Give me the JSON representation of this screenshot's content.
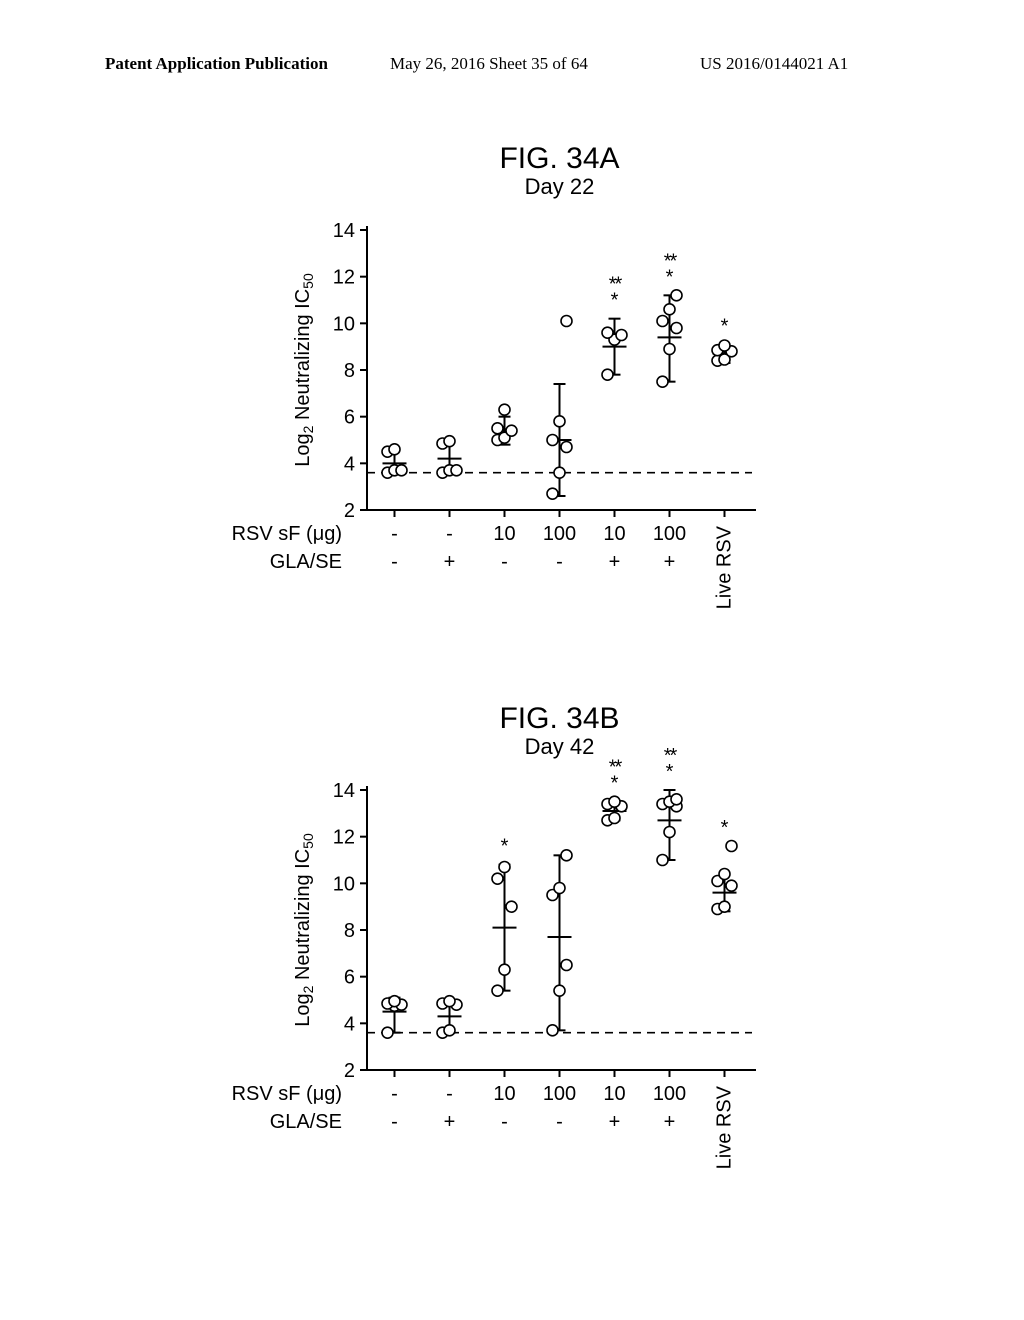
{
  "header": {
    "left": "Patent Application Publication",
    "center": "May 26, 2016  Sheet 35 of 64",
    "right": "US 2016/0144021 A1"
  },
  "chartA": {
    "fig_label": "FIG. 34A",
    "subtitle": "Day 22",
    "type": "scatter-error",
    "ylabel_prefix": "Log",
    "ylabel_sub": "2",
    "ylabel_mid": " Neutralizing IC",
    "ylabel_sub2": "50",
    "ylim": [
      2,
      14
    ],
    "yticks": [
      2,
      4,
      6,
      8,
      10,
      12,
      14
    ],
    "x_categories": [
      "-",
      "-",
      "10",
      "100",
      "10",
      "100",
      "Live RSV"
    ],
    "x_row1_label": "RSV sF (μg)",
    "x_row2_label": "GLA/SE",
    "x_row2_values": [
      "-",
      "+",
      "-",
      "-",
      "+",
      "+",
      ""
    ],
    "baseline_y": 3.6,
    "groups": [
      {
        "x": 1,
        "mean": 4.0,
        "err_lo": 3.6,
        "err_hi": 4.6,
        "points": [
          3.6,
          3.7,
          3.7,
          4.5,
          4.6
        ],
        "sig": ""
      },
      {
        "x": 2,
        "mean": 4.2,
        "err_lo": 3.6,
        "err_hi": 4.9,
        "points": [
          3.6,
          3.7,
          3.7,
          4.85,
          4.95
        ],
        "sig": ""
      },
      {
        "x": 3,
        "mean": 5.4,
        "err_lo": 4.8,
        "err_hi": 6.0,
        "points": [
          5.0,
          5.1,
          5.4,
          5.5,
          6.3
        ],
        "sig": ""
      },
      {
        "x": 4,
        "mean": 5.0,
        "err_lo": 2.6,
        "err_hi": 7.4,
        "points": [
          2.7,
          3.6,
          4.7,
          5.0,
          5.8,
          10.1
        ],
        "sig": ""
      },
      {
        "x": 5,
        "mean": 9.0,
        "err_lo": 7.8,
        "err_hi": 10.2,
        "points": [
          7.8,
          9.3,
          9.5,
          9.6
        ],
        "sig": "***"
      },
      {
        "x": 6,
        "mean": 9.4,
        "err_lo": 7.5,
        "err_hi": 11.2,
        "points": [
          7.5,
          8.9,
          9.8,
          10.1,
          10.6,
          11.2
        ],
        "sig": "***"
      },
      {
        "x": 7,
        "mean": 8.7,
        "err_lo": 8.3,
        "err_hi": 9.1,
        "points": [
          8.4,
          8.45,
          8.8,
          8.85,
          9.05
        ],
        "sig": "*"
      }
    ],
    "title_fontsize": 30,
    "subtitle_fontsize": 22,
    "axis_fontsize": 20,
    "tick_fontsize": 20,
    "row_label_fontsize": 20,
    "marker_stroke": "#000000",
    "marker_fill": "#ffffff",
    "axis_color": "#000000",
    "background_color": "#ffffff",
    "marker_radius": 5.5,
    "line_width": 2
  },
  "chartB": {
    "fig_label": "FIG. 34B",
    "subtitle": "Day 42",
    "type": "scatter-error",
    "ylabel_prefix": "Log",
    "ylabel_sub": "2",
    "ylabel_mid": " Neutralizing IC",
    "ylabel_sub2": "50",
    "ylim": [
      2,
      14
    ],
    "yticks": [
      2,
      4,
      6,
      8,
      10,
      12,
      14
    ],
    "x_categories": [
      "-",
      "-",
      "10",
      "100",
      "10",
      "100",
      "Live RSV"
    ],
    "x_row1_label": "RSV sF (μg)",
    "x_row2_label": "GLA/SE",
    "x_row2_values": [
      "-",
      "+",
      "-",
      "-",
      "+",
      "+",
      ""
    ],
    "baseline_y": 3.6,
    "groups": [
      {
        "x": 1,
        "mean": 4.5,
        "err_lo": 3.6,
        "err_hi": 5.1,
        "points": [
          3.6,
          4.75,
          4.8,
          4.85,
          4.95
        ],
        "sig": ""
      },
      {
        "x": 2,
        "mean": 4.3,
        "err_lo": 3.6,
        "err_hi": 5.0,
        "points": [
          3.6,
          3.7,
          4.8,
          4.85,
          4.95
        ],
        "sig": ""
      },
      {
        "x": 3,
        "mean": 8.1,
        "err_lo": 5.4,
        "err_hi": 10.8,
        "points": [
          5.4,
          6.3,
          9.0,
          10.2,
          10.7
        ],
        "sig": "*"
      },
      {
        "x": 4,
        "mean": 7.7,
        "err_lo": 3.7,
        "err_hi": 11.2,
        "points": [
          3.7,
          5.4,
          6.5,
          9.5,
          9.8,
          11.2
        ],
        "sig": ""
      },
      {
        "x": 5,
        "mean": 13.1,
        "err_lo": 12.7,
        "err_hi": 13.5,
        "points": [
          12.7,
          12.8,
          13.3,
          13.4,
          13.5
        ],
        "sig": "***"
      },
      {
        "x": 6,
        "mean": 12.7,
        "err_lo": 11.0,
        "err_hi": 14.0,
        "points": [
          11.0,
          12.2,
          13.3,
          13.4,
          13.5,
          13.6
        ],
        "sig": "***"
      },
      {
        "x": 7,
        "mean": 9.6,
        "err_lo": 8.8,
        "err_hi": 10.4,
        "points": [
          8.9,
          9.0,
          9.9,
          10.1,
          10.4,
          11.6
        ],
        "sig": "*"
      }
    ],
    "title_fontsize": 30,
    "subtitle_fontsize": 22,
    "axis_fontsize": 20,
    "tick_fontsize": 20,
    "row_label_fontsize": 20,
    "marker_stroke": "#000000",
    "marker_fill": "#ffffff",
    "axis_color": "#000000",
    "background_color": "#ffffff",
    "marker_radius": 5.5,
    "line_width": 2
  }
}
